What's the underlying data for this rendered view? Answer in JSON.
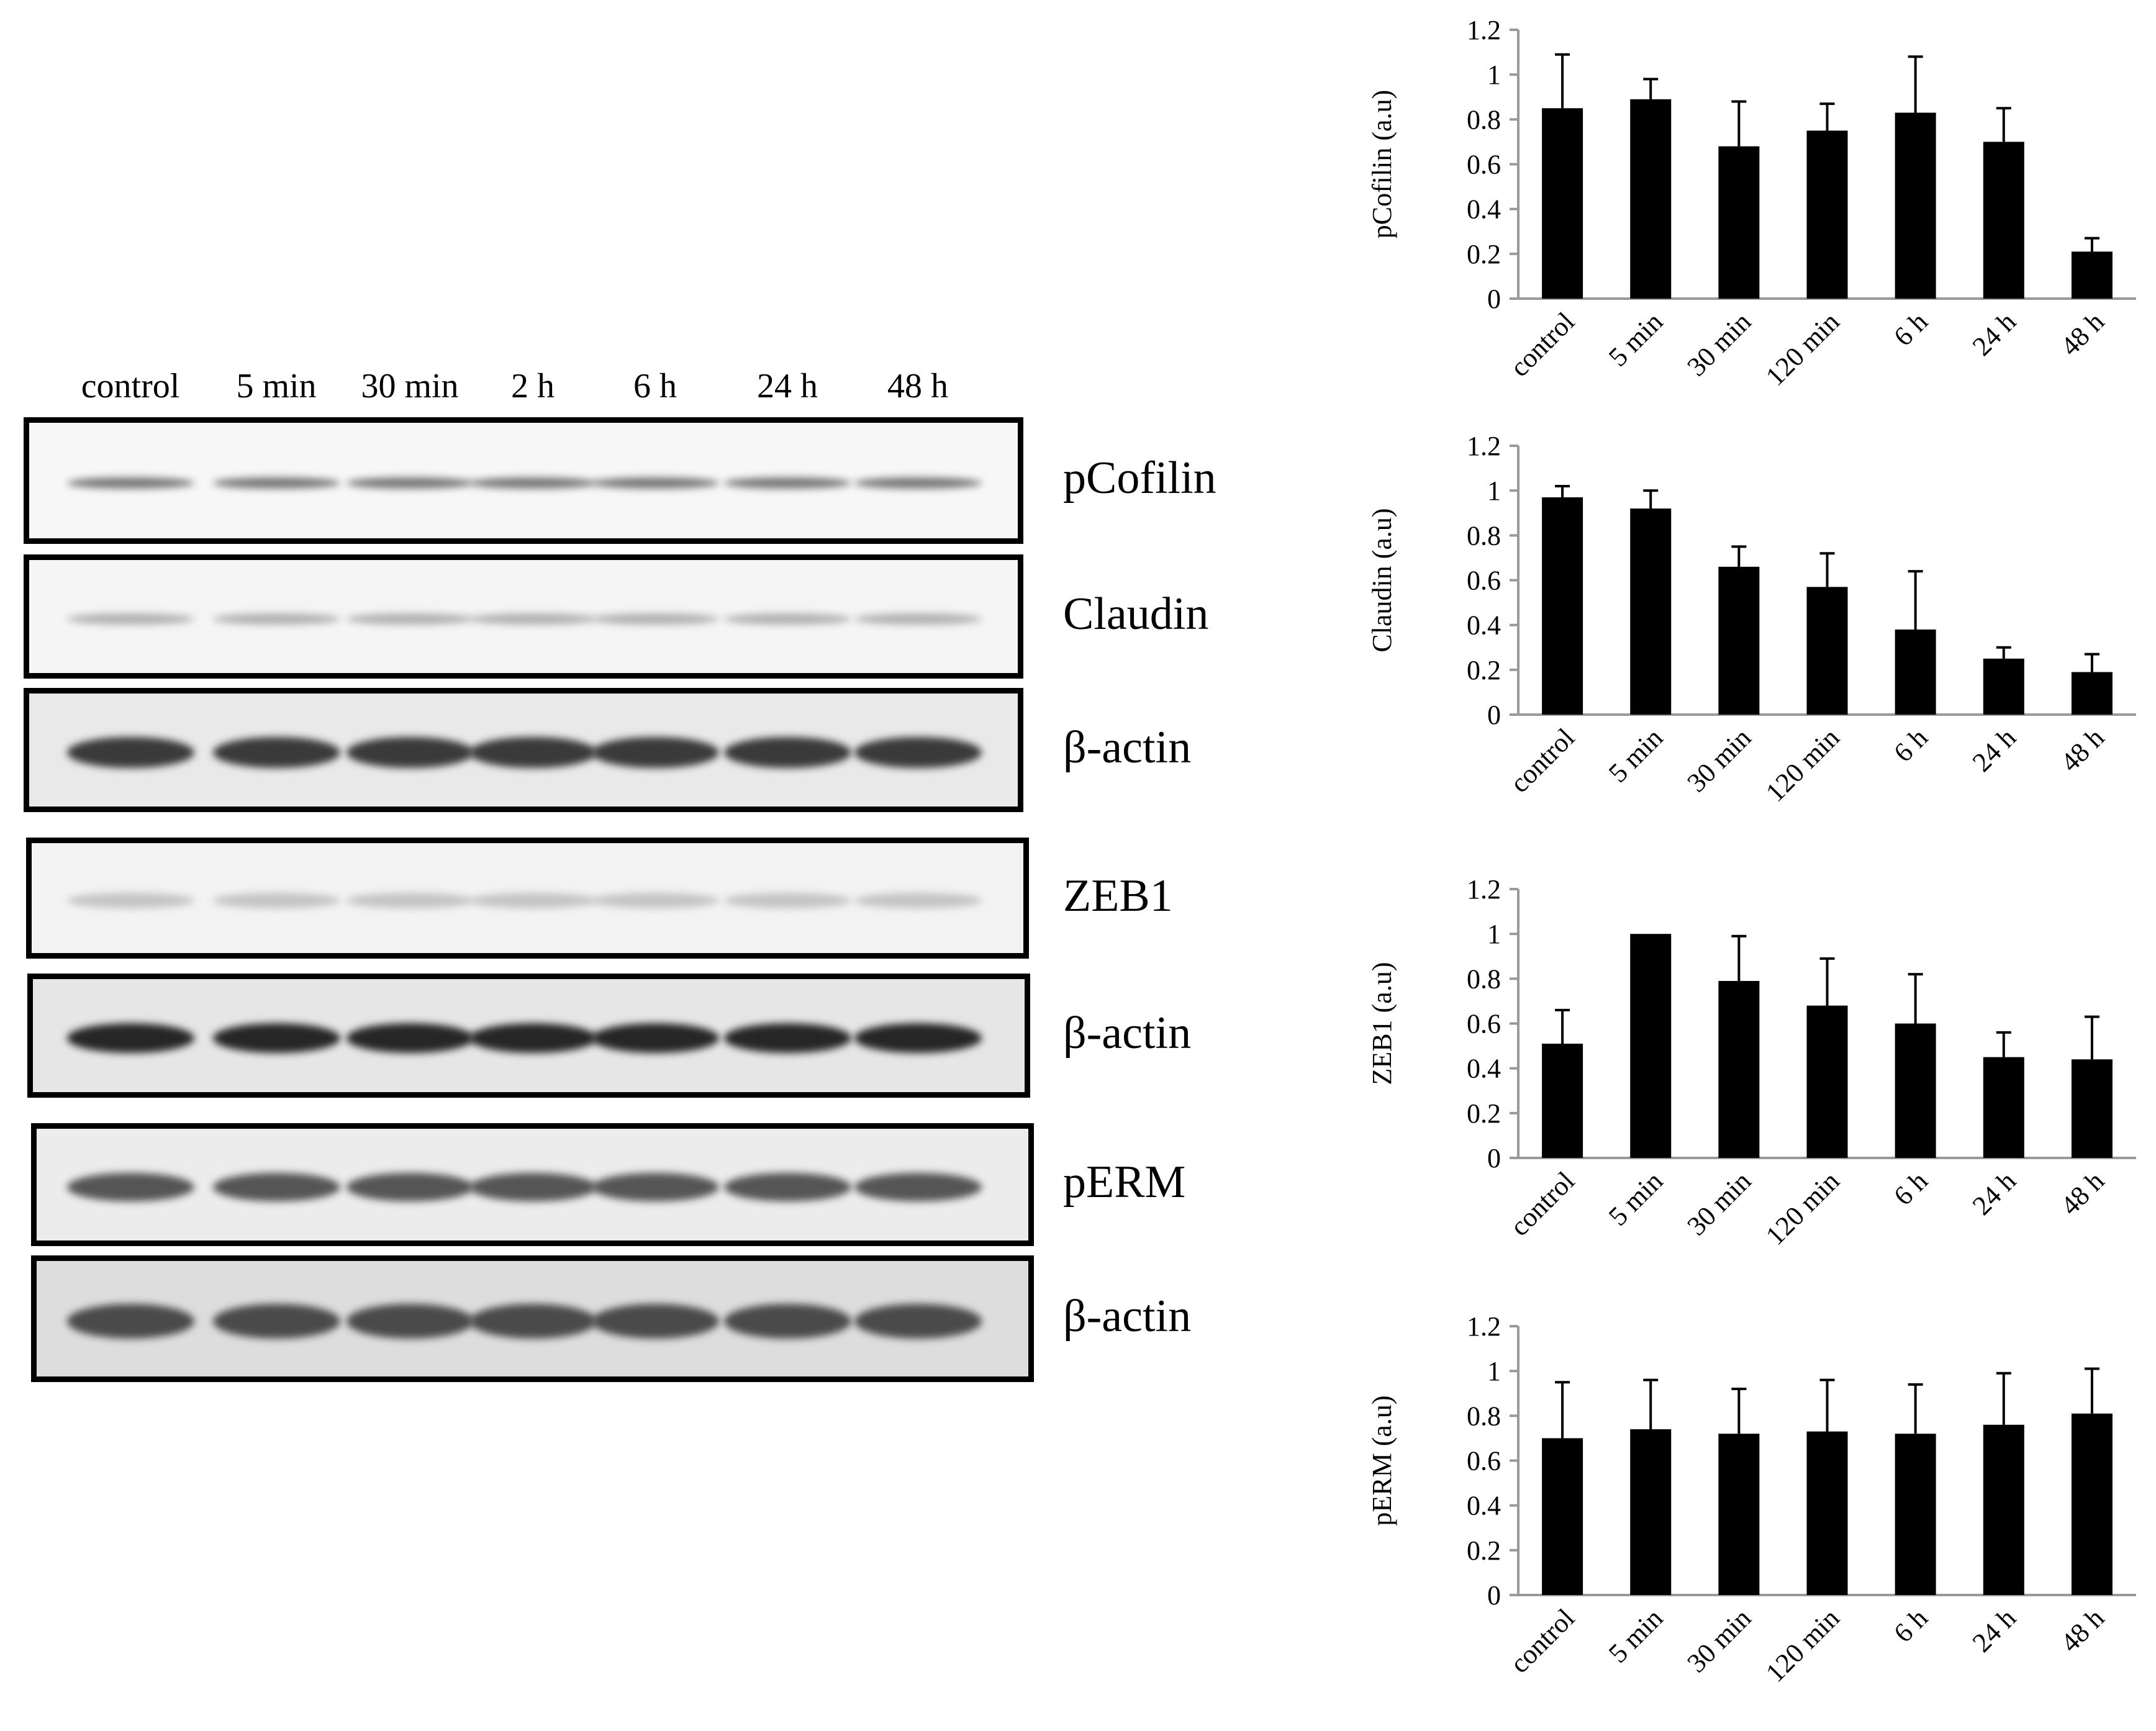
{
  "blot": {
    "lanes": [
      "control",
      "5 min",
      "30 min",
      "2 h",
      "6 h",
      "24 h",
      "48 h"
    ],
    "panels": [
      {
        "label": "pCofilin",
        "band_color": "#777777",
        "band_thickness": 0.1,
        "background": "#f7f7f7"
      },
      {
        "label": "Claudin",
        "band_color": "#b0b0b0",
        "band_thickness": 0.1,
        "background": "#f5f5f5"
      },
      {
        "label": "β-actin",
        "band_color": "#3a3a3a",
        "band_thickness": 0.28,
        "background": "#e9e9e9"
      },
      {
        "label": "ZEB1",
        "band_color": "#c4c4c4",
        "band_thickness": 0.14,
        "background": "#f3f3f3"
      },
      {
        "label": "β-actin",
        "band_color": "#262626",
        "band_thickness": 0.26,
        "background": "#e6e6e6"
      },
      {
        "label": "pERM",
        "band_color": "#555555",
        "band_thickness": 0.26,
        "background": "#ececec"
      },
      {
        "label": "β-actin",
        "band_color": "#4a4a4a",
        "band_thickness": 0.3,
        "background": "#dddddd"
      }
    ]
  },
  "chart_data": [
    {
      "type": "bar",
      "ylabel": "pCofilin (a.u)",
      "categories": [
        "control",
        "5 min",
        "30 min",
        "120 min",
        "6 h",
        "24 h",
        "48 h"
      ],
      "values": [
        0.85,
        0.89,
        0.68,
        0.75,
        0.83,
        0.7,
        0.21
      ],
      "errors": [
        0.24,
        0.09,
        0.2,
        0.12,
        0.25,
        0.15,
        0.06
      ],
      "ylim": [
        0,
        1.2
      ],
      "yticks": [
        "0",
        "0.2",
        "0.4",
        "0.6",
        "0.8",
        "1",
        "1.2"
      ],
      "bar_color": "#000000",
      "grid": false
    },
    {
      "type": "bar",
      "ylabel": "Claudin (a.u)",
      "categories": [
        "control",
        "5 min",
        "30 min",
        "120 min",
        "6 h",
        "24 h",
        "48 h"
      ],
      "values": [
        0.97,
        0.92,
        0.66,
        0.57,
        0.38,
        0.25,
        0.19
      ],
      "errors": [
        0.05,
        0.08,
        0.09,
        0.15,
        0.26,
        0.05,
        0.08
      ],
      "ylim": [
        0,
        1.2
      ],
      "yticks": [
        "0",
        "0.2",
        "0.4",
        "0.6",
        "0.8",
        "1",
        "1.2"
      ],
      "bar_color": "#000000",
      "grid": false
    },
    {
      "type": "bar",
      "ylabel": "ZEB1 (a.u)",
      "categories": [
        "control",
        "5 min",
        "30 min",
        "120 min",
        "6 h",
        "24 h",
        "48 h"
      ],
      "values": [
        0.51,
        1.0,
        0.79,
        0.68,
        0.6,
        0.45,
        0.44
      ],
      "errors": [
        0.15,
        0.0,
        0.2,
        0.21,
        0.22,
        0.11,
        0.19
      ],
      "ylim": [
        0,
        1.2
      ],
      "yticks": [
        "0",
        "0.2",
        "0.4",
        "0.6",
        "0.8",
        "1",
        "1.2"
      ],
      "bar_color": "#000000",
      "grid": false
    },
    {
      "type": "bar",
      "ylabel": "pERM (a.u)",
      "categories": [
        "control",
        "5 min",
        "30 min",
        "120 min",
        "6 h",
        "24 h",
        "48 h"
      ],
      "values": [
        0.7,
        0.74,
        0.72,
        0.73,
        0.72,
        0.76,
        0.81
      ],
      "errors": [
        0.25,
        0.22,
        0.2,
        0.23,
        0.22,
        0.23,
        0.2
      ],
      "ylim": [
        0,
        1.2
      ],
      "yticks": [
        "0",
        "0.2",
        "0.4",
        "0.6",
        "0.8",
        "1",
        "1.2"
      ],
      "bar_color": "#000000",
      "grid": false
    }
  ]
}
